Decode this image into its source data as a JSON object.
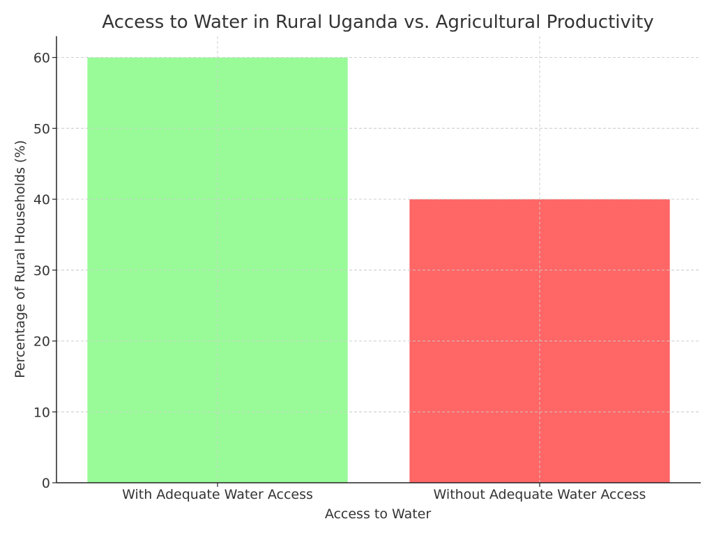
{
  "chart_data": {
    "type": "bar",
    "title": "Access to Water in Rural Uganda vs. Agricultural Productivity",
    "xlabel": "Access to Water",
    "ylabel": "Percentage of Rural Households (%)",
    "categories": [
      "With Adequate Water Access",
      "Without Adequate Water Access"
    ],
    "values": [
      60,
      40
    ],
    "colors": [
      "#98fb98",
      "#ff6666"
    ],
    "ylim": [
      0,
      63
    ],
    "yticks": [
      0,
      10,
      20,
      30,
      40,
      50,
      60
    ],
    "grid": true
  }
}
